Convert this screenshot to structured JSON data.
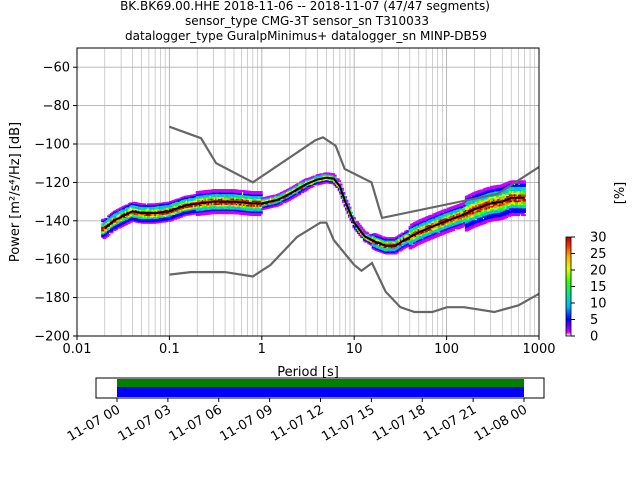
{
  "title": {
    "line1": "BK.BK69.00.HHE   2018-11-06 -- 2018-11-07  (47/47 segments)",
    "line2": "sensor_type CMG-3T sensor_sn T310033",
    "line3": "datalogger_type GuralpMinimus+ datalogger_sn MINP-DB59"
  },
  "chart_data": [
    {
      "type": "heatmap",
      "xlabel": "Period [s]",
      "ylabel": "Power [m²/s⁴/Hz] [dB]",
      "xscale": "log",
      "xlim": [
        0.01,
        1000
      ],
      "ylim": [
        -200,
        -50
      ],
      "x_ticks": [
        {
          "value": 0.01,
          "label": "0.01"
        },
        {
          "value": 0.1,
          "label": "0.1"
        },
        {
          "value": 1,
          "label": "1"
        },
        {
          "value": 10,
          "label": "10"
        },
        {
          "value": 100,
          "label": "100"
        },
        {
          "value": 1000,
          "label": "1000"
        }
      ],
      "y_ticks": [
        {
          "value": -60,
          "label": "−60"
        },
        {
          "value": -80,
          "label": "−80"
        },
        {
          "value": -100,
          "label": "−100"
        },
        {
          "value": -120,
          "label": "−120"
        },
        {
          "value": -140,
          "label": "−140"
        },
        {
          "value": -160,
          "label": "−160"
        },
        {
          "value": -180,
          "label": "−180"
        },
        {
          "value": -200,
          "label": "−200"
        }
      ],
      "grid": true,
      "colors": {
        "noise_model": "#666666",
        "mode_line": "#000000",
        "grid": "#b0b0b0"
      },
      "series": [
        {
          "role": "new_high_noise_model",
          "x": [
            0.1,
            0.22,
            0.32,
            0.8,
            3.8,
            4.6,
            6.3,
            7.9,
            15.4,
            20,
            354.8,
            1000
          ],
          "y": [
            -91,
            -97,
            -110,
            -120,
            -98,
            -96.5,
            -101,
            -113,
            -120,
            -138.5,
            -126,
            -112
          ]
        },
        {
          "role": "new_low_noise_model",
          "x": [
            0.1,
            0.17,
            0.4,
            0.8,
            1.24,
            2.4,
            4.3,
            5,
            6,
            10,
            12,
            15.6,
            21.9,
            31.6,
            45,
            70,
            101,
            154,
            328,
            600,
            1000
          ],
          "y": [
            -168,
            -166.7,
            -166.7,
            -169,
            -163,
            -148.5,
            -141,
            -141,
            -150,
            -163,
            -166,
            -162,
            -177,
            -185,
            -187.5,
            -187.5,
            -185,
            -185,
            -187.5,
            -184,
            -178
          ]
        },
        {
          "role": "mode",
          "x": [
            0.02,
            0.025,
            0.03,
            0.04,
            0.05,
            0.07,
            0.1,
            0.15,
            0.2,
            0.3,
            0.5,
            0.8,
            1,
            1.5,
            2,
            3,
            4,
            5,
            6,
            7,
            8,
            10,
            13,
            17,
            22,
            28,
            35,
            50,
            70,
            100,
            150,
            200,
            300,
            400,
            500,
            700
          ],
          "y": [
            -144,
            -140,
            -138,
            -135,
            -136,
            -136,
            -135,
            -132,
            -131,
            -130,
            -130,
            -131,
            -131,
            -129,
            -126,
            -121,
            -118.5,
            -117.5,
            -118,
            -122,
            -130,
            -141,
            -148,
            -151,
            -153,
            -153,
            -150,
            -146,
            -143,
            -140,
            -137,
            -134,
            -131,
            -130,
            -128,
            -128
          ]
        }
      ],
      "colorbar": {
        "label": "[%]",
        "min": 0,
        "max": 30,
        "ticks": [
          "0",
          "5",
          "10",
          "15",
          "20",
          "25",
          "30"
        ],
        "colormap": [
          "#ffffff",
          "#cc00ff",
          "#0000ff",
          "#00b7ff",
          "#00e68a",
          "#37ff00",
          "#dcff00",
          "#ffb200",
          "#ff3000",
          "#b30000"
        ]
      }
    },
    {
      "type": "timeline",
      "x_ticks": [
        "11-07 00",
        "11-07 03",
        "11-07 06",
        "11-07 09",
        "11-07 12",
        "11-07 15",
        "11-07 18",
        "11-07 21",
        "11-08 00"
      ],
      "data_coverage_color": "#0000ff",
      "psd_coverage_color": "#008000"
    }
  ]
}
